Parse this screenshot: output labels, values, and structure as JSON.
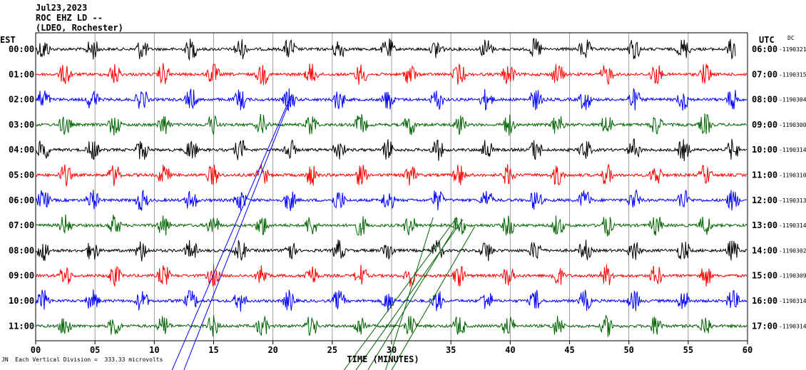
{
  "header": {
    "date": "Jul23,2023",
    "station": "ROC EHZ LD --",
    "network": "(LDEO, Rochester)"
  },
  "left_tz": "EST",
  "right_tz": "UTC",
  "right_top_code": "DC",
  "footer_text": "Each Vertical Division =  333.33 microvolts",
  "footer_mark": "JN",
  "chart_data": {
    "type": "line",
    "subtype": "helicorder-seismogram",
    "xlabel": "TIME (MINUTES)",
    "xlim": [
      0,
      60
    ],
    "x_ticks": [
      "00",
      "05",
      "10",
      "15",
      "20",
      "25",
      "30",
      "35",
      "40",
      "45",
      "50",
      "55",
      "60"
    ],
    "grid": "vertical lines every 5 minutes",
    "rows": [
      {
        "est": "00:00",
        "utc": "06:00",
        "code": "-1190321",
        "color": "#000000"
      },
      {
        "est": "01:00",
        "utc": "07:00",
        "code": "-1190315",
        "color": "#ff0000"
      },
      {
        "est": "02:00",
        "utc": "08:00",
        "code": "-1190304",
        "color": "#0000ff"
      },
      {
        "est": "03:00",
        "utc": "09:00",
        "code": "-1190300",
        "color": "#006400"
      },
      {
        "est": "04:00",
        "utc": "10:00",
        "code": "-1190314",
        "color": "#000000"
      },
      {
        "est": "05:00",
        "utc": "11:00",
        "code": "-1190310",
        "color": "#ff0000"
      },
      {
        "est": "06:00",
        "utc": "12:00",
        "code": "-1190313",
        "color": "#0000ff"
      },
      {
        "est": "07:00",
        "utc": "13:00",
        "code": "-1190314",
        "color": "#006400"
      },
      {
        "est": "08:00",
        "utc": "14:00",
        "code": "-1190302",
        "color": "#000000"
      },
      {
        "est": "09:00",
        "utc": "15:00",
        "code": "-1190309",
        "color": "#ff0000"
      },
      {
        "est": "10:00",
        "utc": "16:00",
        "code": "-1190314",
        "color": "#0000ff"
      },
      {
        "est": "11:00",
        "utc": "17:00",
        "code": "-1190314",
        "color": "#006400"
      }
    ]
  }
}
